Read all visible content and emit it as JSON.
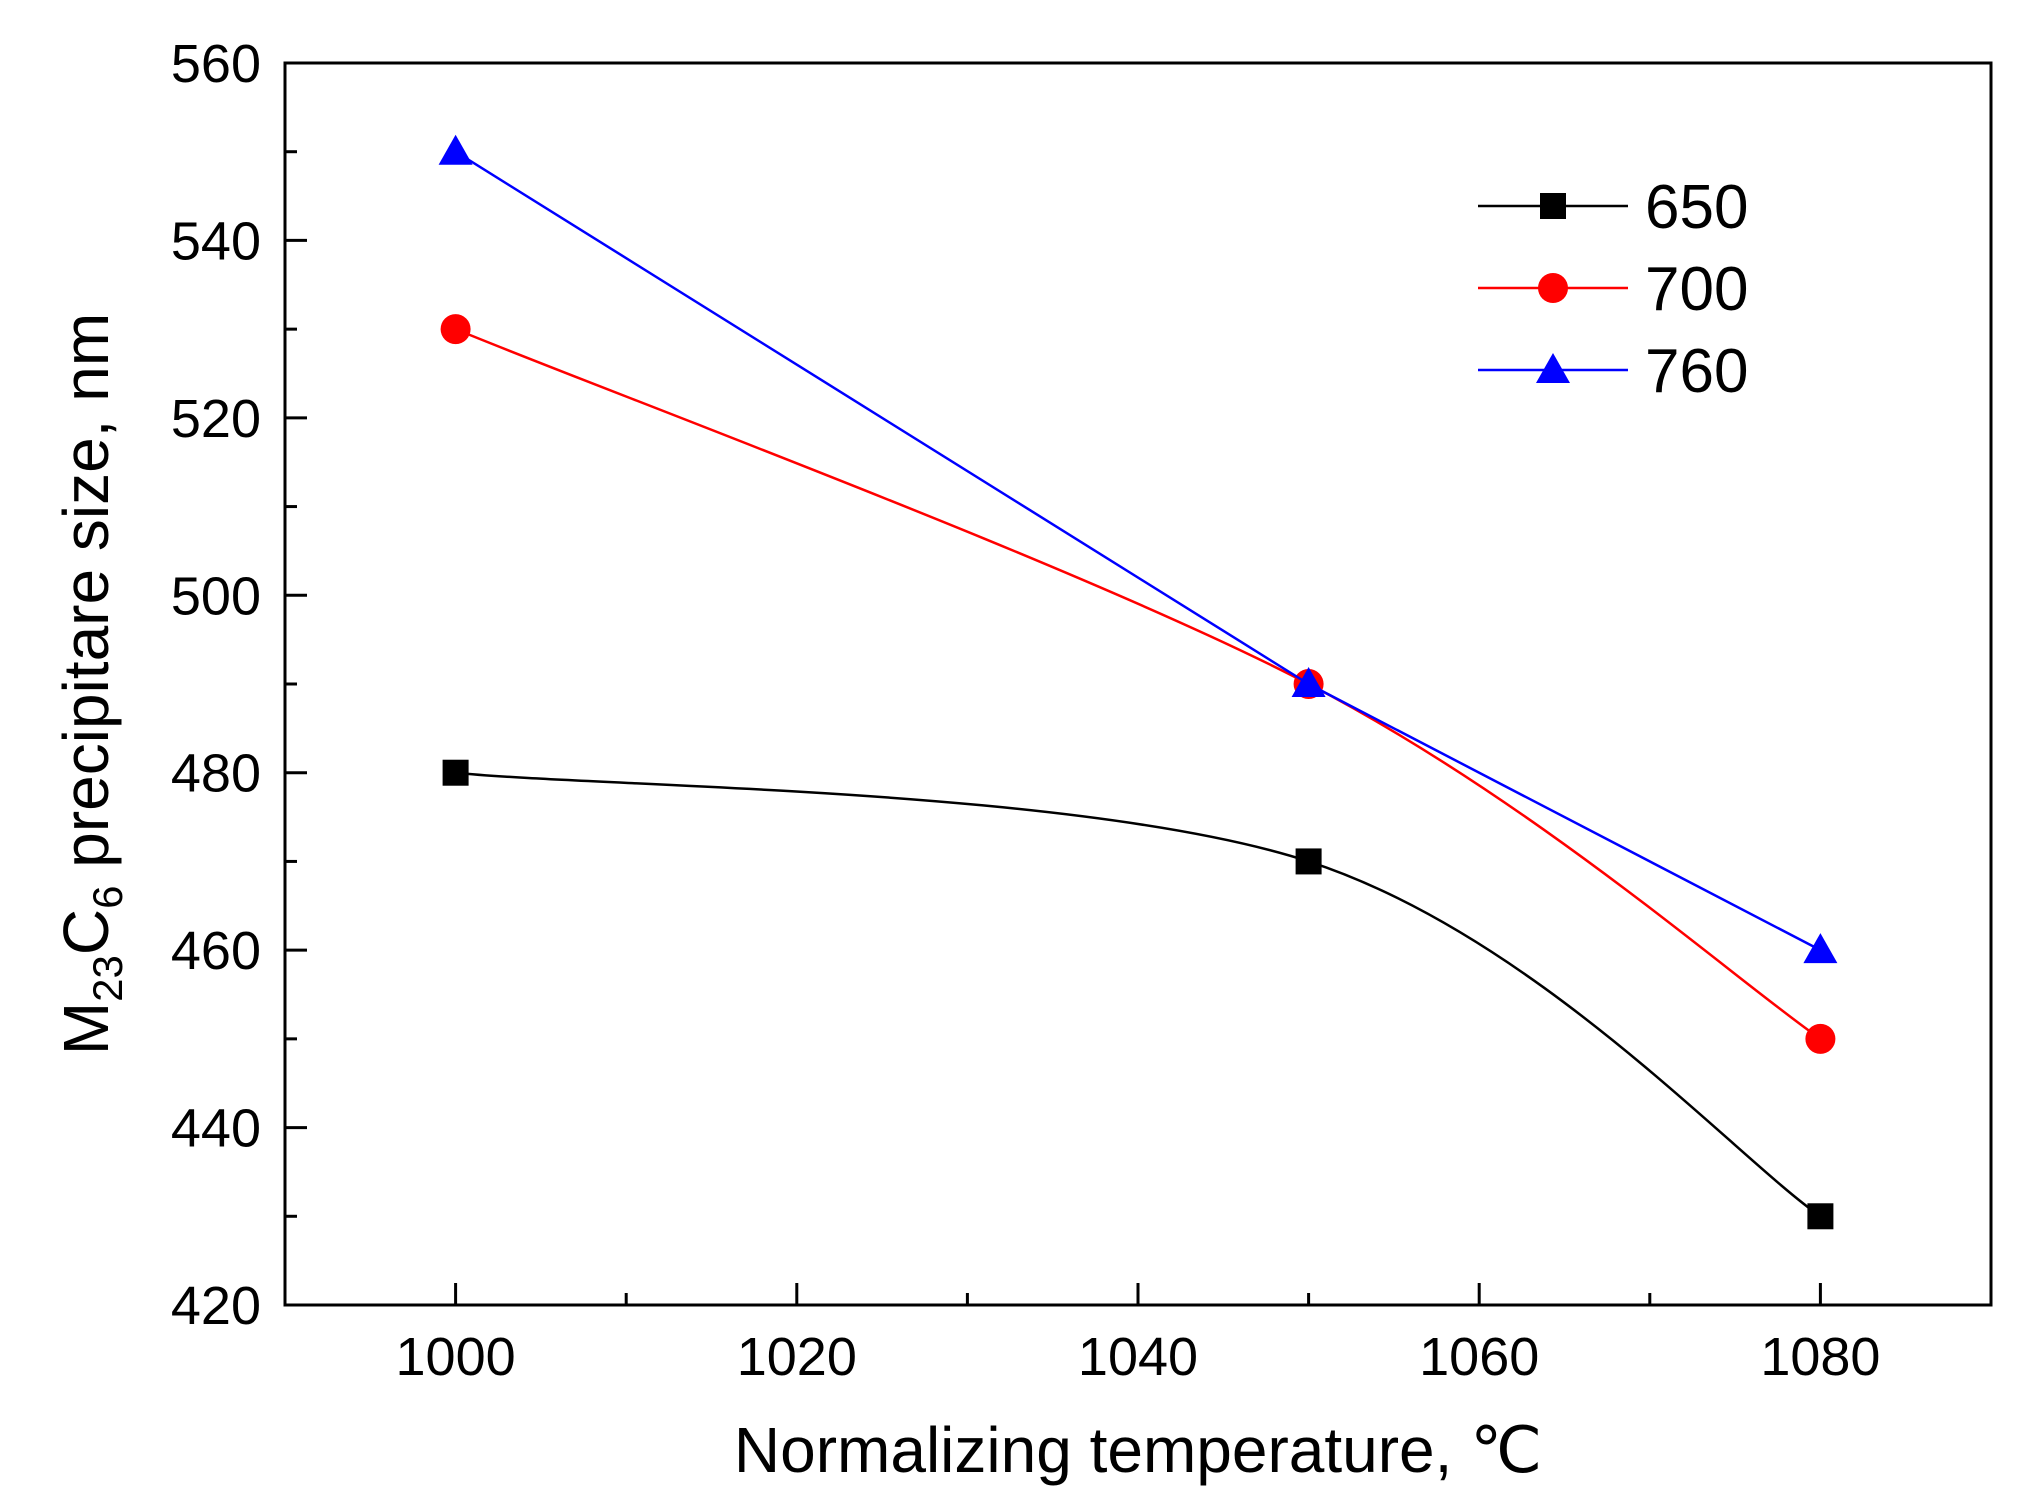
{
  "chart_data": {
    "type": "line",
    "title": "",
    "xlabel": "Normalizing temperature, ℃",
    "ylabel": {
      "prefix": "M",
      "sub1": "23",
      "mid": "C",
      "sub2": "6",
      "suffix": " precipitare size, nm"
    },
    "xlim": [
      990,
      1090
    ],
    "ylim": [
      420,
      560
    ],
    "xticks": [
      1000,
      1020,
      1040,
      1060,
      1080
    ],
    "xticks_minor": [
      1010,
      1030,
      1050,
      1070
    ],
    "yticks": [
      420,
      440,
      460,
      480,
      500,
      520,
      540,
      560
    ],
    "yticks_minor": [
      430,
      450,
      470,
      490,
      510,
      530,
      550
    ],
    "x": [
      1000,
      1050,
      1080
    ],
    "grid": false,
    "legend_position": "top-right",
    "series": [
      {
        "name": "650",
        "values": [
          480,
          470,
          430
        ],
        "color": "#000000",
        "marker": "square",
        "curve": "smooth"
      },
      {
        "name": "700",
        "values": [
          530,
          490,
          450
        ],
        "color": "#ff0000",
        "marker": "circle",
        "curve": "smooth"
      },
      {
        "name": "760",
        "values": [
          550,
          490,
          460
        ],
        "color": "#0000ff",
        "marker": "triangle",
        "curve": "straight"
      }
    ]
  }
}
